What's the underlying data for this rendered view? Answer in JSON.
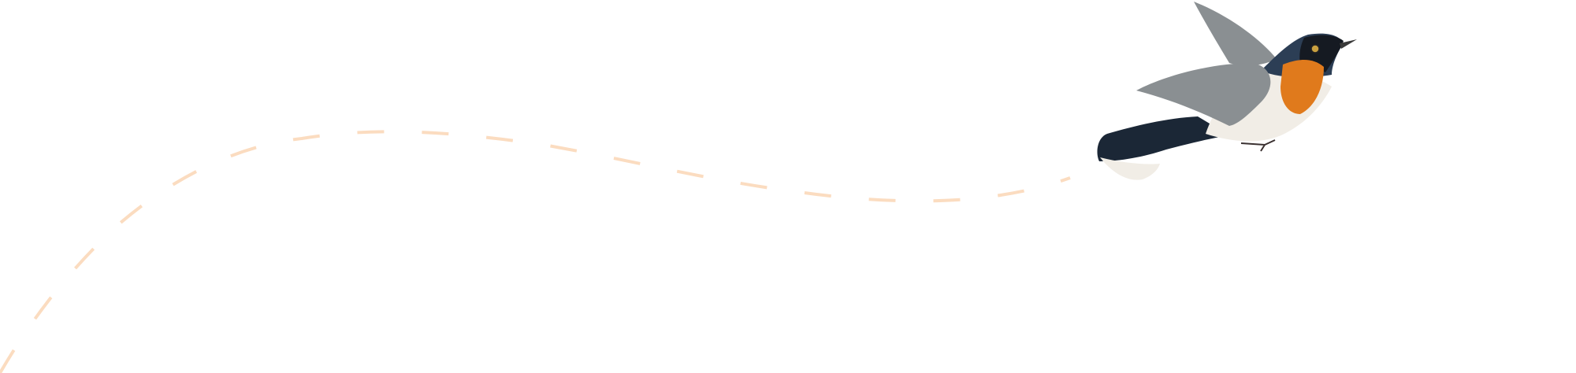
{
  "illustration": {
    "subject": "bird-in-flight",
    "icon": "bird-icon",
    "flight_path_style": "dashed",
    "colors": {
      "background": "#ffffff",
      "flight_path": "#fbdcc0",
      "bird_breast": "#e07a1c",
      "bird_head": "#2c3e55",
      "bird_mask": "#151a22",
      "bird_wing": "#8a8f92",
      "bird_belly": "#f1ede6",
      "bird_tail": "#1b2736"
    }
  }
}
